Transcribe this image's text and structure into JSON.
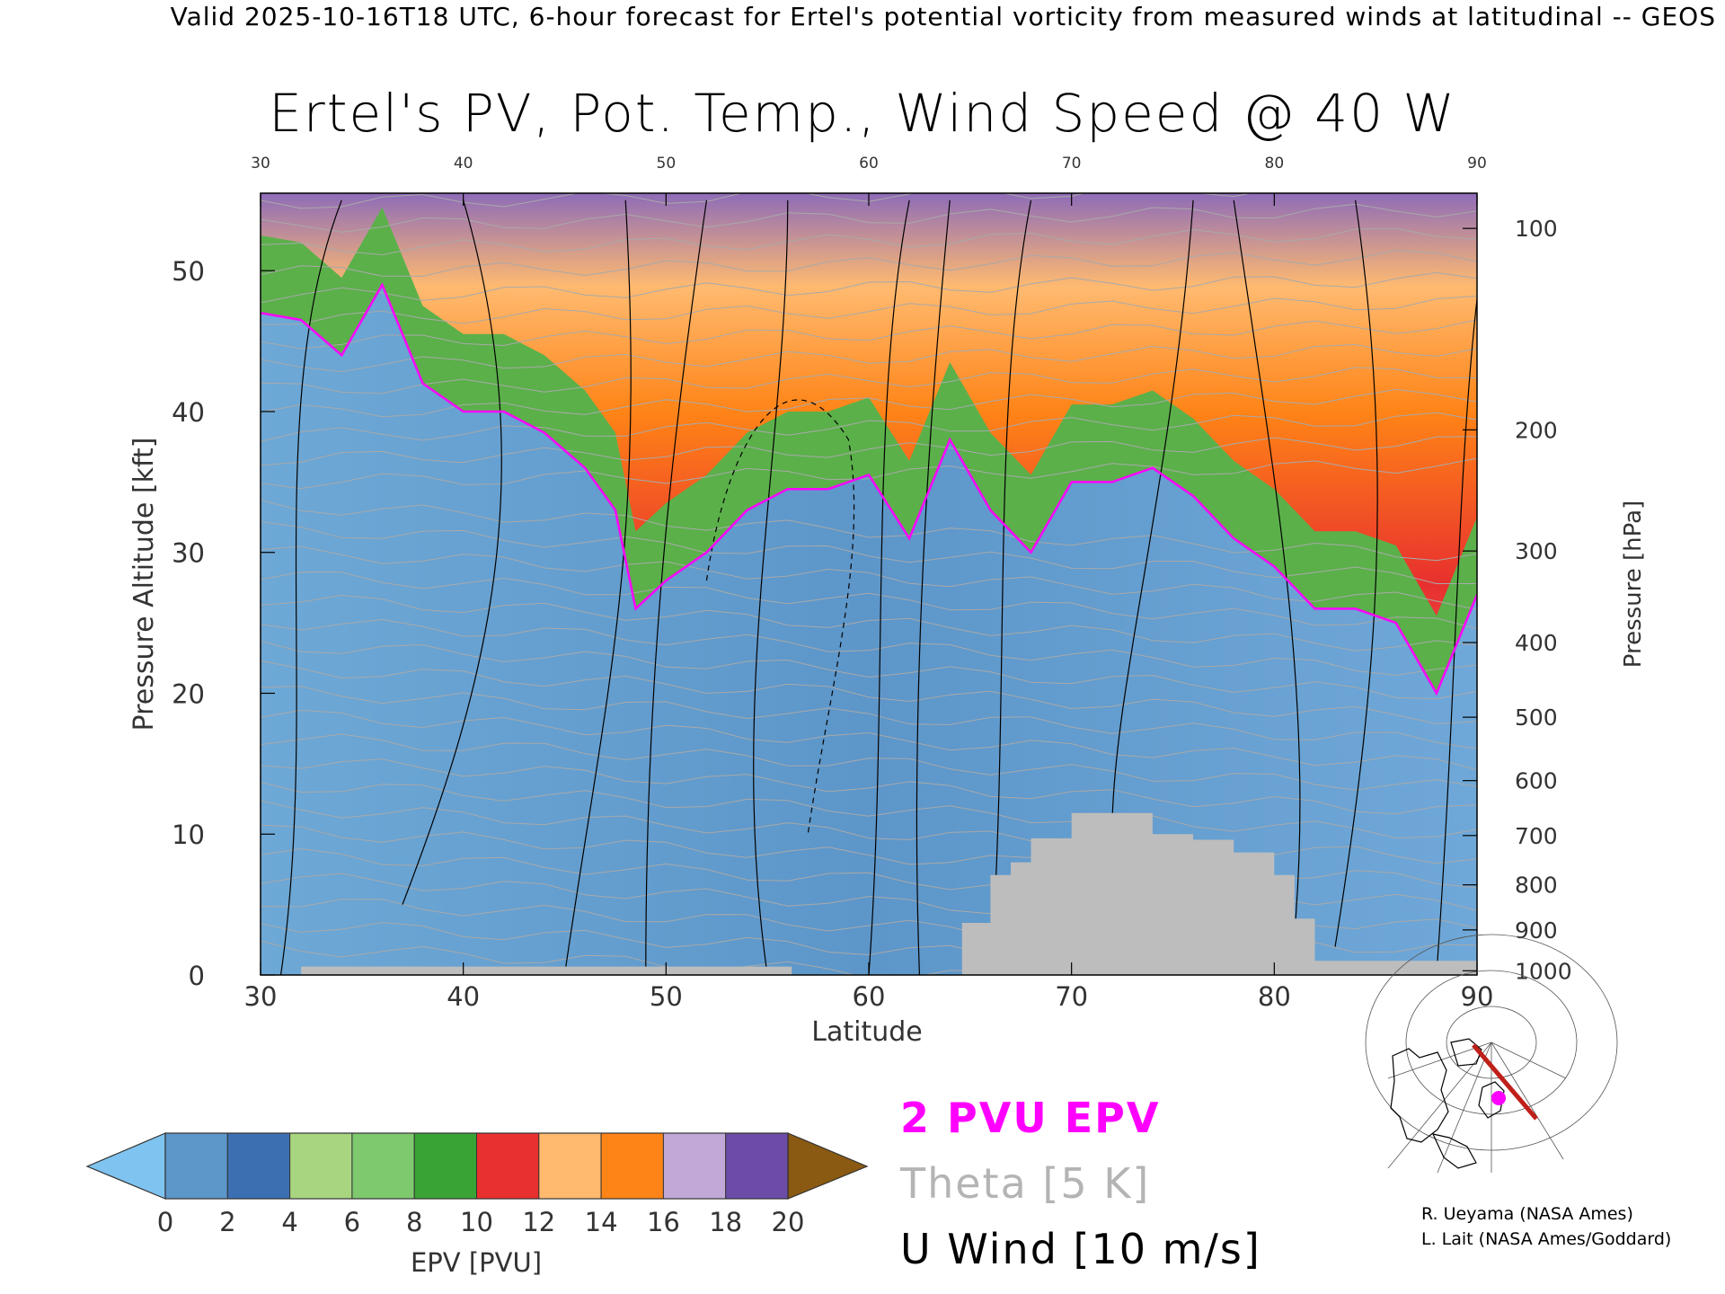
{
  "header": {
    "text": "Valid 2025-10-16T18 UTC, 6-hour forecast for Ertel's potential vorticity from measured winds at latitudinal -- GEOS"
  },
  "chart_data": {
    "type": "heatmap",
    "title": "Ertel's PV, Pot. Temp., Wind Speed @ 40 W",
    "xlabel": "Latitude",
    "ylabel": "Pressure Altitude [kft]",
    "y2label": "Pressure [hPa]",
    "xlim": [
      30,
      90
    ],
    "ylim": [
      0,
      55.5
    ],
    "x_ticks": [
      30,
      40,
      50,
      60,
      70,
      80,
      90
    ],
    "y_ticks": [
      0,
      10,
      20,
      30,
      40,
      50
    ],
    "pressure_ticks": [
      {
        "label": "100",
        "kft": 53
      },
      {
        "label": "200",
        "kft": 38.7
      },
      {
        "label": "300",
        "kft": 30.1
      },
      {
        "label": "400",
        "kft": 23.6
      },
      {
        "label": "500",
        "kft": 18.3
      },
      {
        "label": "600",
        "kft": 13.8
      },
      {
        "label": "700",
        "kft": 9.9
      },
      {
        "label": "800",
        "kft": 6.4
      },
      {
        "label": "900",
        "kft": 3.2
      },
      {
        "label": "1000",
        "kft": 0.3
      }
    ],
    "tropopause_2pvu": {
      "lat": [
        30,
        32,
        34,
        36,
        38,
        40,
        42,
        44,
        46,
        47.5,
        48.5,
        50,
        52,
        54,
        56,
        58,
        60,
        62,
        64,
        66,
        68,
        70,
        72,
        74,
        76,
        78,
        80,
        82,
        84,
        86,
        88,
        90
      ],
      "kft": [
        47,
        46.5,
        44,
        49,
        42,
        40,
        40,
        38.5,
        36,
        33,
        26,
        28,
        30,
        33,
        34.5,
        34.5,
        35.5,
        31,
        38,
        33,
        30,
        35,
        35,
        36,
        34,
        31,
        29,
        26,
        26,
        25,
        20,
        27
      ]
    },
    "terrain_mask": {
      "lat": [
        30,
        32,
        56,
        56.2,
        64.5,
        64.6,
        66,
        67,
        68,
        70,
        72,
        74,
        76,
        78,
        80,
        81,
        82,
        84,
        88,
        90
      ],
      "top_kft": [
        0,
        0.6,
        0.6,
        0,
        0,
        3.7,
        7.1,
        8,
        9.7,
        11.5,
        11.5,
        10,
        9.6,
        8.7,
        7.1,
        4,
        1,
        1,
        1,
        0
      ]
    },
    "epv_colorbar": {
      "label": "EPV [PVU]",
      "tick_labels": [
        "0",
        "2",
        "4",
        "6",
        "8",
        "10",
        "12",
        "14",
        "16",
        "18",
        "20"
      ],
      "colors": [
        "#7fc4f0",
        "#5d96c9",
        "#3b6fb2",
        "#a7d580",
        "#7ec86d",
        "#3aa335",
        "#f4a4a4",
        "#e8302e",
        "#ffba70",
        "#ff8417",
        "#c1a8d6",
        "#6d4ca8",
        "#fff7a0",
        "#8a5a12"
      ]
    },
    "legend": [
      {
        "label": "2 PVU EPV",
        "color": "#ff00ff"
      },
      {
        "label": "Theta [5 K]",
        "color": "#b4b4b4"
      },
      {
        "label": "U Wind [10 m/s]",
        "color": "#000000"
      }
    ]
  },
  "credits": {
    "line1": "R. Ueyama (NASA Ames)",
    "line2": "L. Lait (NASA Ames/Goddard)"
  }
}
